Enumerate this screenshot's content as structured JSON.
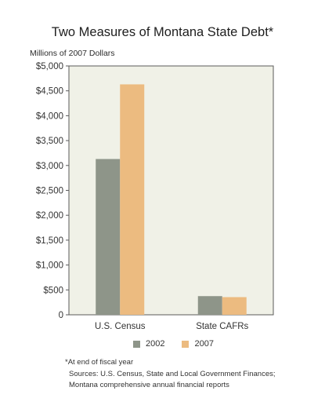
{
  "chart_data": {
    "type": "bar",
    "title": "Two Measures of Montana State Debt*",
    "ylabel": "Millions of 2007 Dollars",
    "xlabel": "",
    "categories": [
      "U.S. Census",
      "State CAFRs"
    ],
    "series": [
      {
        "name": "2002",
        "values": [
          3130,
          375
        ],
        "color": "#8e9589"
      },
      {
        "name": "2007",
        "values": [
          4630,
          355
        ],
        "color": "#ecbb80"
      }
    ],
    "ylim": [
      0,
      5000
    ],
    "yticks": [
      0,
      500,
      1000,
      1500,
      2000,
      2500,
      3000,
      3500,
      4000,
      4500,
      5000
    ],
    "ytick_labels": [
      "0",
      "$500",
      "$1,000",
      "$1,500",
      "$2,000",
      "$2,500",
      "$3,000",
      "$3,500",
      "$4,000",
      "$4,500",
      "$5,000"
    ],
    "plot_background": "#f0f1e7",
    "grid": false,
    "legend_position": "bottom"
  },
  "footnote": "*At end of fiscal year",
  "sources": "Sources: U.S. Census, State and Local Government Finances; Montana comprehensive annual financial reports"
}
